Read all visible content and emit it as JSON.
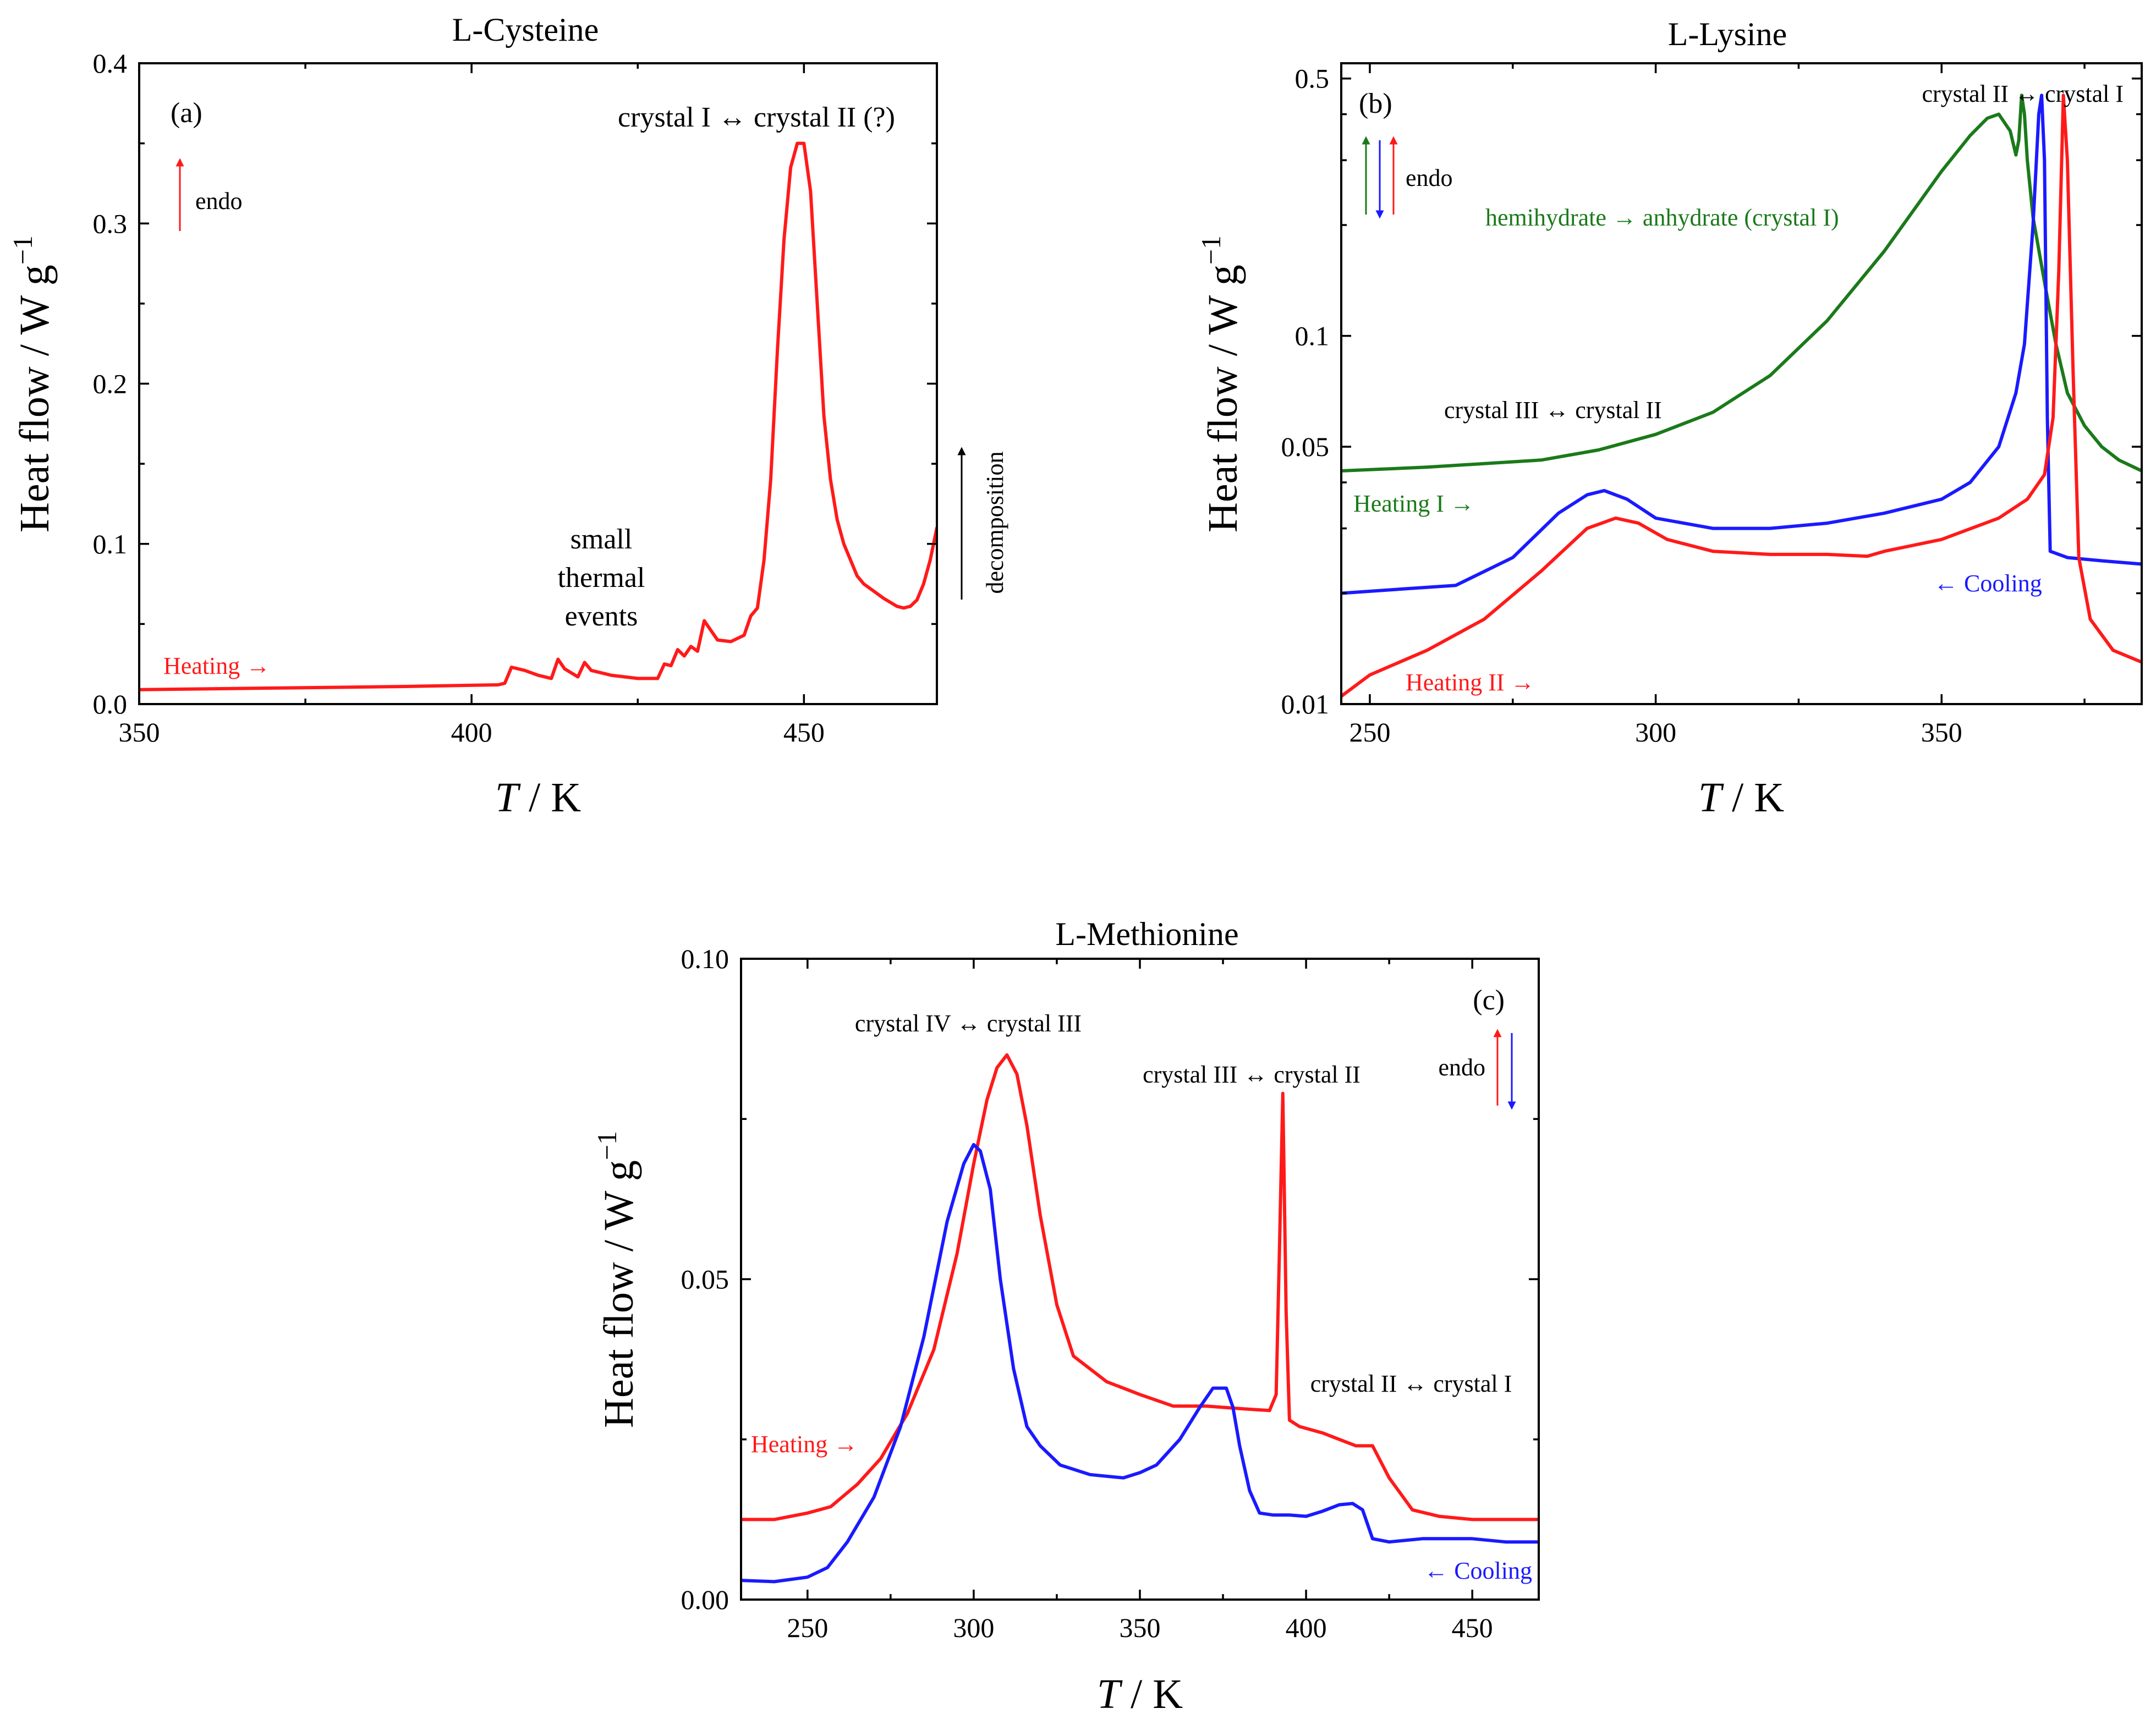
{
  "chart_data": [
    {
      "type": "line",
      "title": "L-Cysteine",
      "panel_label": "(a)",
      "xlabel_italic": "T",
      "xlabel_rest": " / K",
      "ylabel": "Heat flow / W g",
      "ylabel_sup": "−1",
      "xlim": [
        350,
        470
      ],
      "ylim": [
        0.0,
        0.4
      ],
      "yscale": "linear",
      "xticks": [
        350,
        400,
        450
      ],
      "xtick_labels": [
        "350",
        "400",
        "450"
      ],
      "yticks": [
        0.0,
        0.1,
        0.2,
        0.3,
        0.4
      ],
      "ytick_labels": [
        "0.0",
        "0.1",
        "0.2",
        "0.3",
        "0.4"
      ],
      "series": [
        {
          "name": "Heating →",
          "color": "#ff1a1a",
          "x": [
            350,
            370,
            390,
            404,
            405,
            406,
            408,
            410,
            412,
            413,
            414,
            416,
            417,
            418,
            421,
            425,
            428,
            429,
            430,
            431,
            432,
            433,
            434,
            435,
            437,
            439,
            441,
            442,
            443,
            444,
            445,
            446,
            447,
            448,
            449,
            450,
            451,
            452,
            453,
            454,
            455,
            456,
            457,
            458,
            459,
            460,
            462,
            464,
            465,
            466,
            467,
            468,
            469,
            470
          ],
          "y": [
            0.009,
            0.01,
            0.011,
            0.012,
            0.013,
            0.023,
            0.021,
            0.018,
            0.016,
            0.028,
            0.022,
            0.017,
            0.026,
            0.021,
            0.018,
            0.016,
            0.016,
            0.025,
            0.024,
            0.034,
            0.03,
            0.036,
            0.033,
            0.052,
            0.04,
            0.039,
            0.043,
            0.055,
            0.06,
            0.09,
            0.14,
            0.22,
            0.29,
            0.335,
            0.35,
            0.35,
            0.32,
            0.25,
            0.18,
            0.14,
            0.115,
            0.1,
            0.09,
            0.08,
            0.075,
            0.072,
            0.066,
            0.061,
            0.06,
            0.061,
            0.065,
            0.075,
            0.09,
            0.11
          ]
        }
      ],
      "annotations": {
        "peak": "crystal I ↔ crystal II (?)",
        "small_1": "small",
        "small_2": "thermal",
        "small_3": "events",
        "decomposition": "decomposition",
        "endo": "endo",
        "heating": "Heating →"
      }
    },
    {
      "type": "line",
      "title": "L-Lysine",
      "panel_label": "(b)",
      "xlabel_italic": "T",
      "xlabel_rest": " / K",
      "ylabel": "Heat flow / W g",
      "ylabel_sup": "−1",
      "xlim": [
        245,
        385
      ],
      "ylim": [
        0.01,
        0.55
      ],
      "yscale": "log",
      "xticks": [
        250,
        300,
        350
      ],
      "xtick_labels": [
        "250",
        "300",
        "350"
      ],
      "yticks": [
        0.01,
        0.05,
        0.1,
        0.5
      ],
      "ytick_labels": [
        "0.01",
        "0.05",
        "0.1",
        "0.5"
      ],
      "series": [
        {
          "name": "Heating I →",
          "color": "#1a7a1a",
          "x": [
            245,
            260,
            280,
            290,
            300,
            310,
            320,
            330,
            340,
            350,
            355,
            358,
            360,
            362,
            363,
            363.5,
            364,
            364.5,
            365,
            366,
            368,
            370,
            372,
            375,
            378,
            381,
            385
          ],
          "y": [
            0.043,
            0.044,
            0.046,
            0.049,
            0.054,
            0.062,
            0.078,
            0.11,
            0.17,
            0.28,
            0.35,
            0.39,
            0.4,
            0.36,
            0.31,
            0.34,
            0.45,
            0.4,
            0.3,
            0.21,
            0.14,
            0.095,
            0.07,
            0.057,
            0.05,
            0.046,
            0.043
          ]
        },
        {
          "name": "← Cooling",
          "color": "#1a1aff",
          "x": [
            245,
            255,
            265,
            275,
            283,
            288,
            291,
            295,
            300,
            310,
            320,
            330,
            340,
            350,
            355,
            360,
            363,
            364.5,
            366,
            367,
            367.5,
            368,
            368.5,
            369,
            372,
            378,
            385
          ],
          "y": [
            0.02,
            0.0205,
            0.021,
            0.025,
            0.033,
            0.037,
            0.038,
            0.036,
            0.032,
            0.03,
            0.03,
            0.031,
            0.033,
            0.036,
            0.04,
            0.05,
            0.07,
            0.095,
            0.2,
            0.4,
            0.45,
            0.3,
            0.06,
            0.026,
            0.025,
            0.0245,
            0.024
          ]
        },
        {
          "name": "Heating II →",
          "color": "#ff1a1a",
          "x": [
            245,
            250,
            260,
            270,
            280,
            288,
            293,
            297,
            302,
            310,
            320,
            330,
            337,
            340,
            350,
            360,
            365,
            368,
            369.5,
            370.5,
            371.3,
            372,
            373,
            374,
            376,
            380,
            385
          ],
          "y": [
            0.0105,
            0.012,
            0.014,
            0.017,
            0.023,
            0.03,
            0.032,
            0.031,
            0.028,
            0.026,
            0.0255,
            0.0255,
            0.0252,
            0.026,
            0.028,
            0.032,
            0.036,
            0.042,
            0.06,
            0.15,
            0.45,
            0.3,
            0.08,
            0.025,
            0.017,
            0.014,
            0.013
          ]
        }
      ],
      "annotations": {
        "top": "crystal II ↔ crystal I",
        "hemihydrate": "hemihydrate  → anhydrate (crystal I)",
        "crystal_iii": "crystal III ↔ crystal II",
        "endo": "endo",
        "heating_i": "Heating I →",
        "cooling": "← Cooling",
        "heating_ii": "Heating II →"
      }
    },
    {
      "type": "line",
      "title": "L-Methionine",
      "panel_label": "(c)",
      "xlabel_italic": "T",
      "xlabel_rest": " / K",
      "ylabel": "Heat flow / W g",
      "ylabel_sup": "−1",
      "xlim": [
        230,
        470
      ],
      "ylim": [
        0.0,
        0.1
      ],
      "yscale": "linear",
      "xticks": [
        250,
        300,
        350,
        400,
        450
      ],
      "xtick_labels": [
        "250",
        "300",
        "350",
        "400",
        "450"
      ],
      "yticks": [
        0.0,
        0.05,
        0.1
      ],
      "ytick_labels": [
        "0.00",
        "0.05",
        "0.10"
      ],
      "series": [
        {
          "name": "Heating →",
          "color": "#ff1a1a",
          "x": [
            230,
            240,
            250,
            257,
            265,
            272,
            280,
            288,
            295,
            300,
            304,
            307,
            310,
            313,
            316,
            320,
            325,
            330,
            340,
            350,
            360,
            370,
            380,
            389,
            391,
            392,
            393,
            394,
            395,
            398,
            405,
            410,
            415,
            420,
            425,
            432,
            440,
            450,
            460,
            470
          ],
          "y": [
            0.0125,
            0.0125,
            0.0135,
            0.0145,
            0.018,
            0.022,
            0.029,
            0.039,
            0.054,
            0.068,
            0.078,
            0.083,
            0.085,
            0.082,
            0.074,
            0.06,
            0.046,
            0.038,
            0.034,
            0.032,
            0.0302,
            0.0302,
            0.0298,
            0.0295,
            0.032,
            0.055,
            0.079,
            0.045,
            0.028,
            0.027,
            0.026,
            0.025,
            0.024,
            0.024,
            0.019,
            0.014,
            0.013,
            0.0125,
            0.0125,
            0.0125
          ]
        },
        {
          "name": "← Cooling",
          "color": "#1a1aff",
          "x": [
            230,
            240,
            250,
            256,
            262,
            270,
            278,
            285,
            292,
            297,
            300,
            302,
            305,
            308,
            312,
            316,
            320,
            326,
            335,
            345,
            350,
            355,
            362,
            368,
            372,
            376,
            378,
            380,
            383,
            386,
            390,
            395,
            400,
            405,
            410,
            414,
            417,
            420,
            425,
            435,
            450,
            460,
            470
          ],
          "y": [
            0.003,
            0.0028,
            0.0035,
            0.005,
            0.009,
            0.016,
            0.027,
            0.041,
            0.059,
            0.068,
            0.071,
            0.07,
            0.064,
            0.05,
            0.036,
            0.027,
            0.024,
            0.021,
            0.0195,
            0.019,
            0.0198,
            0.021,
            0.025,
            0.03,
            0.033,
            0.033,
            0.03,
            0.024,
            0.017,
            0.0135,
            0.0132,
            0.0132,
            0.013,
            0.0138,
            0.0148,
            0.015,
            0.014,
            0.0095,
            0.009,
            0.0095,
            0.0095,
            0.009,
            0.009
          ]
        }
      ],
      "annotations": {
        "crystal_iv": "crystal IV ↔ crystal III",
        "crystal_iii": "crystal III ↔ crystal II",
        "crystal_ii": "crystal II ↔ crystal I",
        "endo": "endo",
        "heating": "Heating →",
        "cooling": "← Cooling"
      }
    }
  ]
}
